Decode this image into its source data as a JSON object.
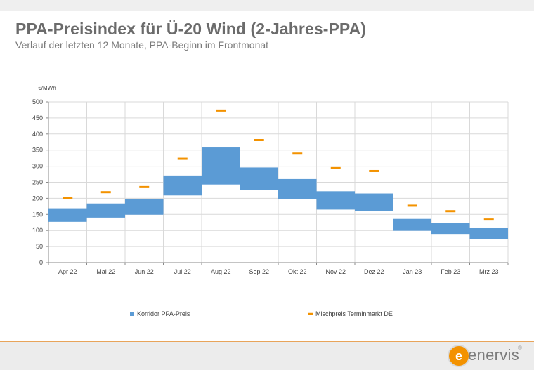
{
  "header": {
    "title": "PPA-Preisindex für Ü-20 Wind (2-Jahres-PPA)",
    "subtitle": "Verlauf der letzten 12 Monate, PPA-Beginn im Frontmonat"
  },
  "chart_data": {
    "type": "bar",
    "ylabel": "€/MWh",
    "ylim": [
      0,
      500
    ],
    "yticks": [
      0,
      50,
      100,
      150,
      200,
      250,
      300,
      350,
      400,
      450,
      500
    ],
    "grid": true,
    "legend_position": "bottom",
    "categories": [
      "Apr 22",
      "Mai 22",
      "Jun 22",
      "Jul 22",
      "Aug 22",
      "Sep 22",
      "Okt 22",
      "Nov 22",
      "Dez 22",
      "Jan 23",
      "Feb 23",
      "Mrz 23"
    ],
    "series": [
      {
        "name": "Korridor PPA-Preis",
        "kind": "range-bar",
        "color": "#5b9bd5",
        "low": [
          127,
          140,
          149,
          209,
          243,
          225,
          197,
          165,
          160,
          99,
          87,
          74
        ],
        "high": [
          169,
          184,
          197,
          271,
          358,
          296,
          260,
          222,
          215,
          136,
          123,
          107
        ]
      },
      {
        "name": "Mischpreis Terminmarkt DE",
        "kind": "marker",
        "color": "#f39200",
        "values": [
          201,
          219,
          235,
          323,
          473,
          381,
          339,
          294,
          285,
          177,
          160,
          134
        ]
      }
    ]
  },
  "footer": {
    "brand": "enervis",
    "brand_mark": "e",
    "registered": "®",
    "accent_color": "#f39200"
  }
}
